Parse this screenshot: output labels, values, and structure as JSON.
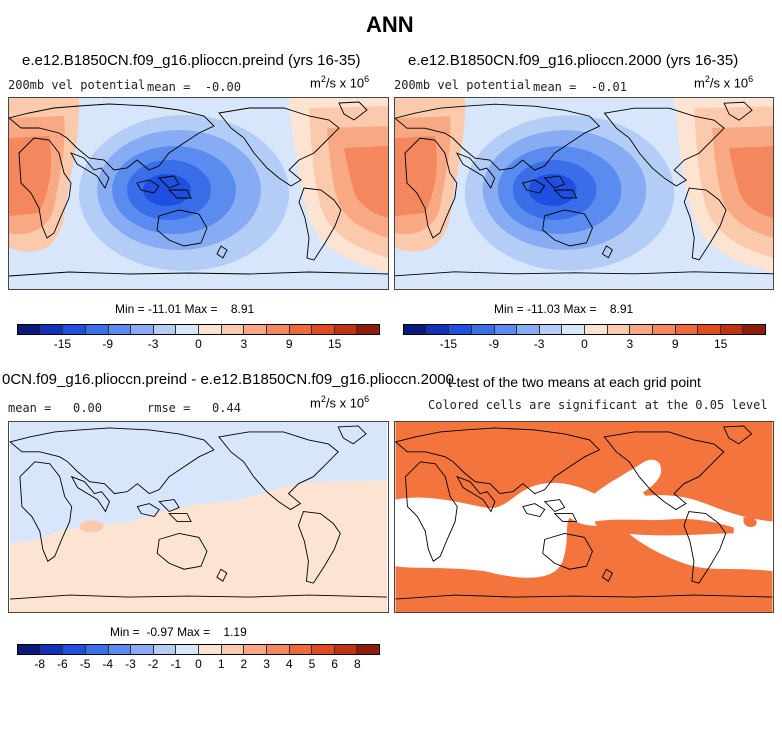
{
  "title": "ANN",
  "panels": [
    {
      "name": "preind",
      "title": "e.e12.B1850CN.f09_g16.plioccn.preind (yrs 16-35)",
      "variable": "200mb vel potential",
      "mean_label": "mean =",
      "mean_value": "-0.00",
      "units_base": "m",
      "units_exp1": "2",
      "units_mid": "/s x 10",
      "units_exp2": "6",
      "min_label": "Min =",
      "min_value": "-11.01",
      "max_label": "Max =",
      "max_value": "8.91"
    },
    {
      "name": "2000",
      "title": "e.e12.B1850CN.f09_g16.plioccn.2000 (yrs 16-35)",
      "variable": "200mb vel potential",
      "mean_label": "mean =",
      "mean_value": "-0.01",
      "units_base": "m",
      "units_exp1": "2",
      "units_mid": "/s x 10",
      "units_exp2": "6",
      "min_label": "Min =",
      "min_value": "-11.03",
      "max_label": "Max =",
      "max_value": "8.91"
    },
    {
      "name": "difference",
      "title": "0CN.f09_g16.plioccn.preind - e.e12.B1850CN.f09_g16.plioccn.2000",
      "mean_label": "mean =",
      "mean_value": "0.00",
      "rmse_label": "rmse =",
      "rmse_value": "0.44",
      "units_base": "m",
      "units_exp1": "2",
      "units_mid": "/s x 10",
      "units_exp2": "6",
      "min_label": "Min =",
      "min_value": "-0.97",
      "max_label": "Max =",
      "max_value": "1.19"
    },
    {
      "name": "ttest",
      "title": "t-test of the two means at each grid point",
      "subtitle": "Colored cells are significant at the 0.05 level"
    }
  ],
  "colorbars": {
    "main": {
      "colors": [
        "#0a1a78",
        "#1230b8",
        "#1f4fe0",
        "#3a6ee8",
        "#5a8cef",
        "#88acf3",
        "#b4cdf7",
        "#d8e6fb",
        "#fde4d2",
        "#fbc9ab",
        "#f8a983",
        "#f4875d",
        "#ee6a3a",
        "#e24b1f",
        "#c23210",
        "#8e1c08"
      ],
      "tick_labels": [
        "-15",
        "-9",
        "-3",
        "0",
        "3",
        "9",
        "15"
      ],
      "tick_index": [
        2,
        4,
        6,
        8,
        10,
        12,
        14
      ]
    },
    "diff": {
      "colors": [
        "#0a1a78",
        "#1230b8",
        "#1f4fe0",
        "#3a6ee8",
        "#5a8cef",
        "#88acf3",
        "#b4cdf7",
        "#d8e6fb",
        "#fde4d2",
        "#fbc9ab",
        "#f8a983",
        "#f4875d",
        "#ee6a3a",
        "#e24b1f",
        "#c23210",
        "#8e1c08"
      ],
      "tick_labels": [
        "-8",
        "-6",
        "-5",
        "-4",
        "-3",
        "-2",
        "-1",
        "0",
        "1",
        "2",
        "3",
        "4",
        "5",
        "6",
        "8"
      ],
      "tick_index": [
        1,
        2,
        3,
        4,
        5,
        6,
        7,
        8,
        9,
        10,
        11,
        12,
        13,
        14,
        15
      ]
    }
  },
  "chart_data": [
    {
      "type": "heatmap",
      "name": "preind",
      "projection": "cylindrical equidistant, centered 180",
      "min": -11.01,
      "max": 8.91,
      "mean": -0.0,
      "levels": [
        -15,
        -12,
        -9,
        -6,
        -3,
        -1,
        0,
        1,
        3,
        6,
        9,
        12,
        15
      ]
    },
    {
      "type": "heatmap",
      "name": "2000",
      "projection": "cylindrical equidistant, centered 180",
      "min": -11.03,
      "max": 8.91,
      "mean": -0.01,
      "levels": [
        -15,
        -12,
        -9,
        -6,
        -3,
        -1,
        0,
        1,
        3,
        6,
        9,
        12,
        15
      ]
    },
    {
      "type": "heatmap",
      "name": "difference",
      "min": -0.97,
      "max": 1.19,
      "mean": 0.0,
      "rmse": 0.44,
      "levels": [
        -8,
        -6,
        -5,
        -4,
        -3,
        -2,
        -1,
        0,
        1,
        2,
        3,
        4,
        5,
        6,
        8
      ]
    },
    {
      "type": "heatmap",
      "name": "ttest",
      "significance_level": 0.05,
      "significant_color": "#f4743e",
      "nonsignificant_color": "#ffffff"
    }
  ]
}
